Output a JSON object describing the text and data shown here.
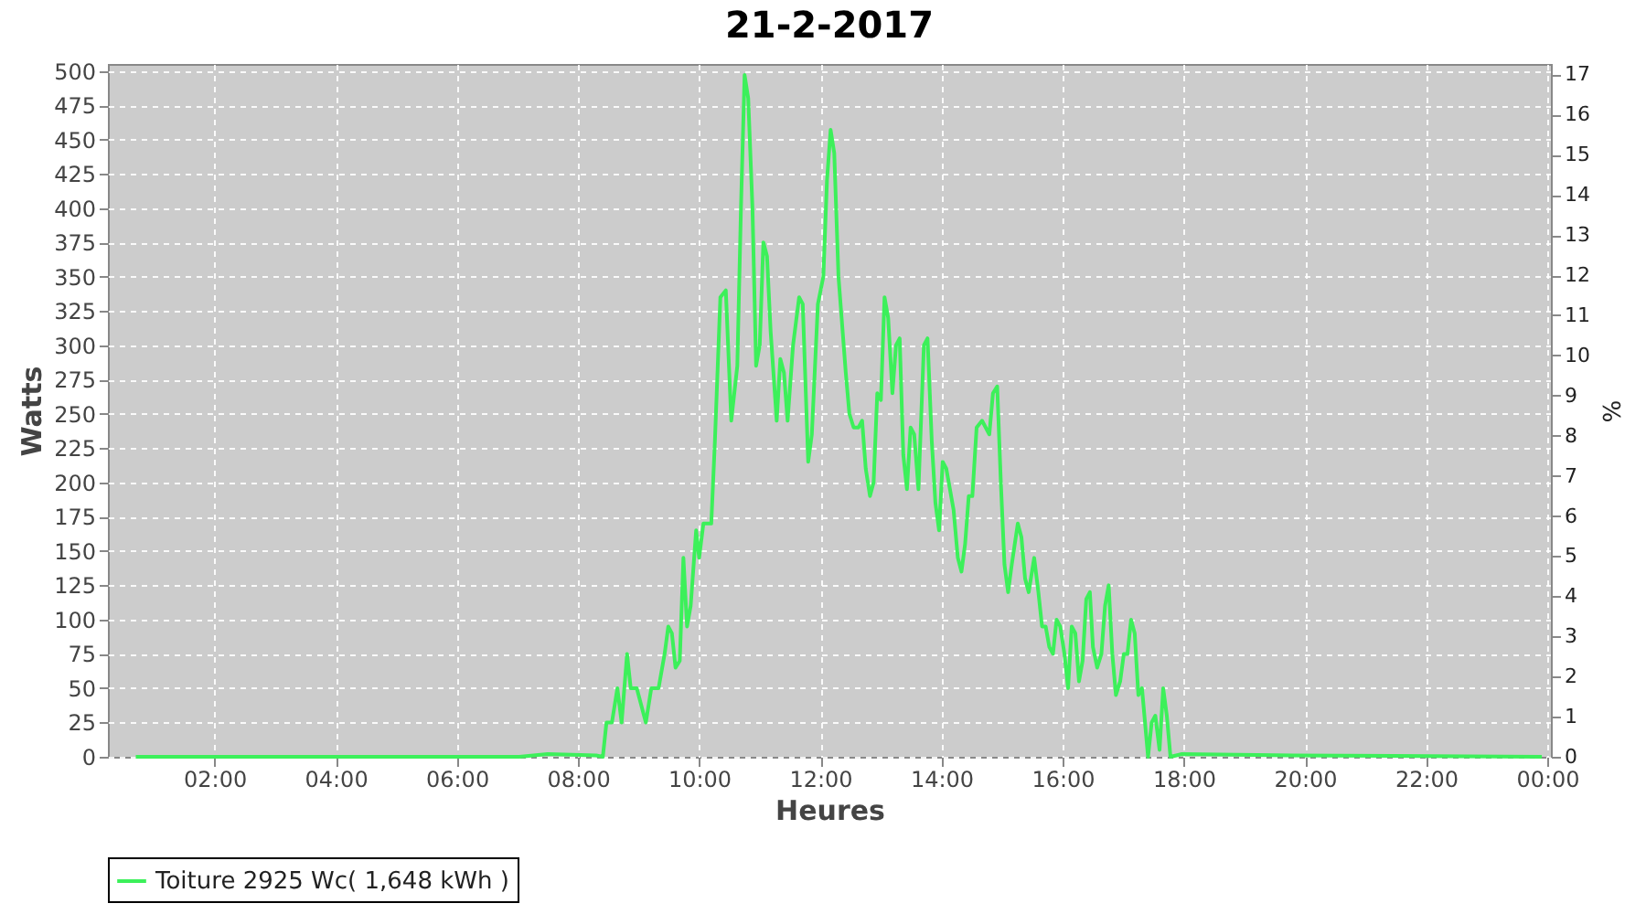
{
  "chart_data": {
    "type": "line",
    "title": "21-2-2017",
    "xlabel": "Heures",
    "ylabel": "Watts",
    "y2label": "%",
    "x": [
      0.7,
      3,
      5,
      7.03,
      7.5,
      8.3,
      8.41,
      8.47,
      8.56,
      8.65,
      8.72,
      8.81,
      8.87,
      8.97,
      9.03,
      9.12,
      9.21,
      9.33,
      9.43,
      9.49,
      9.55,
      9.61,
      9.68,
      9.74,
      9.8,
      9.86,
      9.95,
      10.0,
      10.07,
      10.2,
      10.26,
      10.35,
      10.44,
      10.53,
      10.63,
      10.69,
      10.75,
      10.81,
      10.88,
      10.94,
      11.0,
      11.06,
      11.12,
      11.18,
      11.28,
      11.34,
      11.4,
      11.46,
      11.55,
      11.65,
      11.71,
      11.8,
      11.86,
      11.96,
      12.05,
      12.11,
      12.17,
      12.23,
      12.3,
      12.36,
      12.42,
      12.48,
      12.55,
      12.63,
      12.69,
      12.75,
      12.82,
      12.88,
      12.94,
      13.0,
      13.06,
      13.12,
      13.19,
      13.25,
      13.31,
      13.37,
      13.43,
      13.49,
      13.55,
      13.62,
      13.71,
      13.77,
      13.84,
      13.9,
      13.96,
      14.02,
      14.08,
      14.14,
      14.2,
      14.27,
      14.33,
      14.39,
      14.45,
      14.51,
      14.58,
      14.67,
      14.73,
      14.79,
      14.85,
      14.92,
      14.98,
      15.04,
      15.1,
      15.16,
      15.26,
      15.32,
      15.38,
      15.44,
      15.53,
      15.6,
      15.66,
      15.72,
      15.78,
      15.84,
      15.9,
      15.96,
      16.03,
      16.09,
      16.15,
      16.21,
      16.27,
      16.33,
      16.39,
      16.45,
      16.5,
      16.57,
      16.64,
      16.7,
      16.76,
      16.82,
      16.88,
      16.95,
      17.01,
      17.07,
      17.13,
      17.19,
      17.25,
      17.31,
      17.38,
      17.41,
      17.47,
      17.53,
      17.6,
      17.66,
      17.72,
      17.78,
      17.97,
      19.81,
      23.91
    ],
    "series": [
      {
        "name": "Toiture 2925 Wc( 1,648 kWh )",
        "color": "#3cf05a",
        "values": [
          0,
          0,
          0,
          0,
          2,
          1,
          0,
          25,
          25,
          50,
          25,
          75,
          50,
          50,
          40,
          25,
          50,
          50,
          75,
          95,
          90,
          65,
          70,
          145,
          95,
          110,
          165,
          145,
          170,
          170,
          230,
          335,
          340,
          245,
          285,
          400,
          497,
          480,
          400,
          285,
          300,
          375,
          365,
          310,
          245,
          290,
          280,
          245,
          300,
          335,
          330,
          215,
          235,
          330,
          350,
          420,
          457,
          440,
          350,
          315,
          280,
          250,
          240,
          240,
          245,
          210,
          190,
          200,
          265,
          260,
          335,
          320,
          265,
          300,
          305,
          220,
          195,
          240,
          235,
          195,
          300,
          305,
          230,
          185,
          165,
          215,
          210,
          195,
          180,
          145,
          135,
          155,
          190,
          190,
          240,
          245,
          240,
          235,
          265,
          270,
          200,
          140,
          120,
          140,
          170,
          160,
          130,
          120,
          145,
          120,
          95,
          95,
          80,
          75,
          100,
          95,
          75,
          50,
          95,
          90,
          55,
          70,
          115,
          120,
          80,
          65,
          75,
          110,
          125,
          75,
          45,
          55,
          75,
          75,
          100,
          90,
          45,
          50,
          15,
          0,
          25,
          30,
          5,
          50,
          30,
          0,
          2,
          1,
          0
        ]
      }
    ],
    "xlim": [
      0.24,
      24.06
    ],
    "xticks": [
      {
        "value": 2,
        "label": "02:00"
      },
      {
        "value": 4,
        "label": "04:00"
      },
      {
        "value": 6,
        "label": "06:00"
      },
      {
        "value": 8,
        "label": "08:00"
      },
      {
        "value": 10,
        "label": "10:00"
      },
      {
        "value": 12,
        "label": "12:00"
      },
      {
        "value": 14,
        "label": "14:00"
      },
      {
        "value": 16,
        "label": "16:00"
      },
      {
        "value": 18,
        "label": "18:00"
      },
      {
        "value": 20,
        "label": "20:00"
      },
      {
        "value": 22,
        "label": "22:00"
      },
      {
        "value": 24,
        "label": "00:00"
      }
    ],
    "ylim": [
      0,
      505
    ],
    "yticks": [
      0,
      25,
      50,
      75,
      100,
      125,
      150,
      175,
      200,
      225,
      250,
      275,
      300,
      325,
      350,
      375,
      400,
      425,
      450,
      475,
      500
    ],
    "y2lim": [
      0,
      17.26
    ],
    "y2ticks": [
      0,
      1,
      2,
      3,
      4,
      5,
      6,
      7,
      8,
      9,
      10,
      11,
      12,
      13,
      14,
      15,
      16,
      17
    ],
    "grid": true,
    "legend": "bottom",
    "marker": "none",
    "line_style": "solid"
  }
}
